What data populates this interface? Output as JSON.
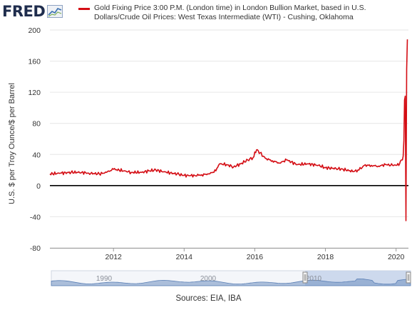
{
  "logo": {
    "text": "FRED",
    "icon": "chart-line-icon"
  },
  "legend": {
    "label": "Gold Fixing Price 3:00 P.M. (London time) in London Bullion Market, based in U.S. Dollars/Crude Oil Prices: West Texas Intermediate (WTI) - Cushing, Oklahoma",
    "color": "#d40d14"
  },
  "sources": "Sources: EIA, IBA",
  "navigator": {
    "labels": [
      "1990",
      "2000",
      "2010"
    ],
    "handle_icon": "drag-handle-icon"
  },
  "chart_data": {
    "type": "line",
    "ylabel": "U.S. $ per Troy Ounce/$ per Barrel",
    "xlabel": "",
    "xlim": [
      2010.2,
      2020.35
    ],
    "ylim": [
      -80,
      200
    ],
    "y_ticks": [
      200,
      160,
      120,
      80,
      40,
      0,
      -40,
      -80
    ],
    "x_ticks": [
      2012,
      2014,
      2016,
      2018,
      2020
    ],
    "zero_line": true,
    "grid": "horizontal",
    "series": [
      {
        "color": "#d40d14",
        "x": [
          2010.2,
          2010.5,
          2010.8,
          2011.1,
          2011.3,
          2011.6,
          2011.8,
          2012.0,
          2012.3,
          2012.5,
          2012.8,
          2013.0,
          2013.2,
          2013.5,
          2013.8,
          2014.0,
          2014.3,
          2014.5,
          2014.7,
          2014.9,
          2015.0,
          2015.2,
          2015.4,
          2015.6,
          2015.8,
          2015.95,
          2016.05,
          2016.15,
          2016.3,
          2016.5,
          2016.7,
          2016.9,
          2017.2,
          2017.5,
          2017.8,
          2018.0,
          2018.3,
          2018.5,
          2018.8,
          2018.95,
          2019.1,
          2019.3,
          2019.5,
          2019.7,
          2019.9,
          2020.0,
          2020.1,
          2020.15,
          2020.18,
          2020.2,
          2020.22,
          2020.24,
          2020.26,
          2020.28,
          2020.3,
          2020.32
        ],
        "values": [
          15,
          16,
          17,
          17,
          16,
          15,
          17,
          21,
          19,
          17,
          17,
          19,
          20,
          17,
          15,
          13,
          13,
          14,
          15,
          19,
          28,
          27,
          24,
          28,
          33,
          36,
          46,
          42,
          35,
          32,
          29,
          33,
          27,
          28,
          26,
          23,
          22,
          21,
          18,
          20,
          26,
          26,
          25,
          27,
          26,
          26,
          28,
          33,
          33,
          38,
          58,
          110,
          115,
          -45,
          150,
          188
        ]
      }
    ]
  }
}
